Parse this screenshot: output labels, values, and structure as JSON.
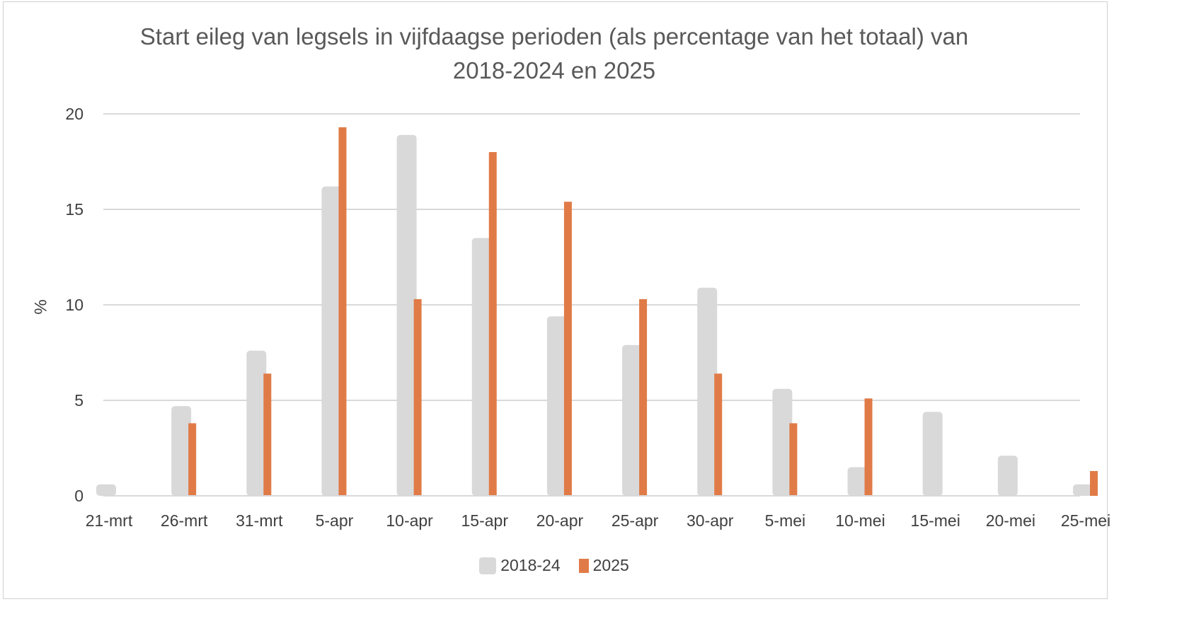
{
  "chart_data": {
    "type": "bar",
    "title": "Start eileg van legsels in vijfdaagse perioden (als percentage van het totaal) van 2018-2024 en 2025",
    "title_lines": [
      "Start eileg van legsels in vijfdaagse perioden (als percentage van het totaal) van",
      "2018-2024 en 2025"
    ],
    "ylabel": "%",
    "xlabel": "",
    "ylim": [
      0,
      20
    ],
    "yticks": [
      0,
      5,
      10,
      15,
      20
    ],
    "grid": true,
    "legend_position": "bottom",
    "categories": [
      "21-mrt",
      "26-mrt",
      "31-mrt",
      "5-apr",
      "10-apr",
      "15-apr",
      "20-apr",
      "25-apr",
      "30-apr",
      "5-mei",
      "10-mei",
      "15-mei",
      "20-mei",
      "25-mei"
    ],
    "series": [
      {
        "name": "2018-24",
        "color": "#d9d9d9",
        "values": [
          0.6,
          4.7,
          7.6,
          16.2,
          18.9,
          13.5,
          9.4,
          7.9,
          10.9,
          5.6,
          1.5,
          4.4,
          2.1,
          0.6
        ]
      },
      {
        "name": "2025",
        "color": "#e07b47",
        "values": [
          0,
          3.8,
          6.4,
          19.3,
          10.3,
          18.0,
          15.4,
          10.3,
          6.4,
          3.8,
          5.1,
          0,
          0,
          1.3
        ]
      }
    ]
  }
}
